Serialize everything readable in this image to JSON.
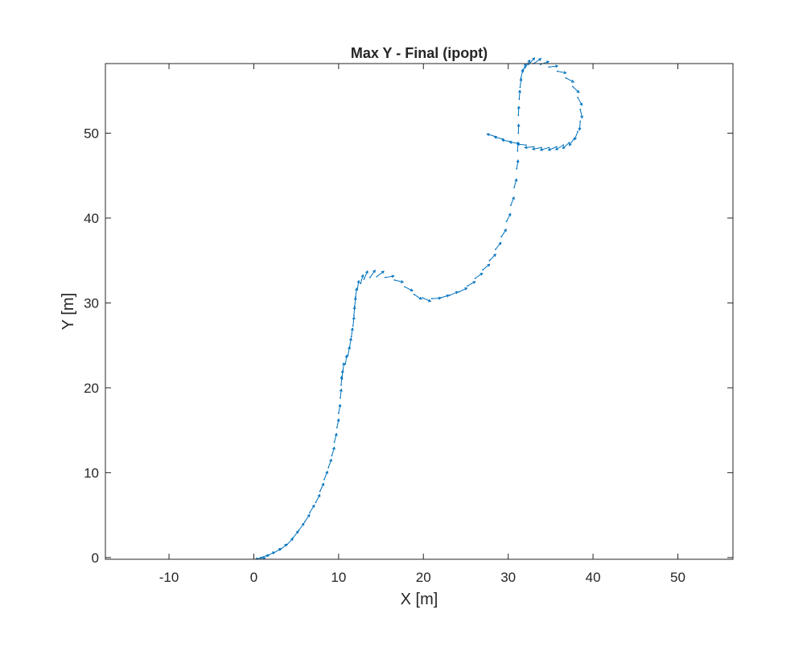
{
  "chart_data": {
    "type": "scatter",
    "title": "Max Y - Final (ipopt)",
    "xlabel": "X [m]",
    "ylabel": "Y [m]",
    "xlim": [
      -17.5,
      56.5
    ],
    "ylim": [
      -0.2,
      58.2
    ],
    "xticks": [
      -10,
      0,
      10,
      20,
      30,
      40,
      50
    ],
    "yticks": [
      0,
      10,
      20,
      30,
      40,
      50
    ],
    "xtick_labels": [
      "-10",
      "0",
      "10",
      "20",
      "30",
      "40",
      "50"
    ],
    "ytick_labels": [
      "0",
      "10",
      "20",
      "30",
      "40",
      "50"
    ],
    "grid": false,
    "series": [
      {
        "color": "#0072BD",
        "style": "quiver",
        "x": [
          0.3,
          0.8,
          1.5,
          2.3,
          3.1,
          3.9,
          4.6,
          5.3,
          6.0,
          6.6,
          7.3,
          7.8,
          8.3,
          8.8,
          9.2,
          9.5,
          9.8,
          10.0,
          10.2,
          10.3,
          10.4,
          10.5,
          10.8,
          11.1,
          11.3,
          11.5,
          11.7,
          11.8,
          11.9,
          12.0,
          12.2,
          12.6,
          13.0,
          13.7,
          14.5,
          15.5,
          16.6,
          17.8,
          18.9,
          19.9,
          21.0,
          22.0,
          23.1,
          24.2,
          25.2,
          26.1,
          27.0,
          27.8,
          28.5,
          29.2,
          29.8,
          30.3,
          30.7,
          31.0,
          31.1,
          31.2,
          31.2,
          31.3,
          31.4,
          31.5,
          31.7,
          32.0,
          32.4,
          33.0,
          33.8,
          34.8,
          35.8,
          36.8,
          37.6,
          38.2,
          38.5,
          38.5,
          38.2,
          37.8,
          37.2,
          36.5,
          35.7,
          34.8,
          33.9,
          33.0,
          32.1,
          31.2,
          30.3,
          29.4,
          28.5
        ],
        "y": [
          -0.1,
          0.0,
          0.2,
          0.5,
          0.9,
          1.5,
          2.3,
          3.2,
          4.2,
          5.3,
          6.5,
          7.8,
          9.2,
          10.6,
          12.0,
          13.6,
          15.3,
          17.0,
          18.8,
          20.3,
          21.0,
          21.9,
          22.8,
          23.8,
          24.8,
          26.0,
          27.3,
          28.5,
          29.6,
          30.7,
          31.6,
          32.3,
          32.8,
          33.0,
          33.1,
          33.0,
          32.7,
          31.9,
          31.0,
          30.6,
          30.5,
          30.6,
          30.9,
          31.3,
          32.0,
          32.9,
          33.9,
          35.0,
          36.3,
          37.8,
          39.6,
          41.5,
          43.6,
          45.8,
          47.9,
          50.0,
          52.1,
          54.0,
          55.4,
          56.5,
          57.2,
          57.7,
          58.1,
          58.2,
          58.1,
          57.8,
          57.3,
          56.5,
          55.5,
          54.2,
          52.8,
          51.4,
          50.2,
          49.4,
          48.9,
          48.6,
          48.4,
          48.3,
          48.3,
          48.4,
          48.6,
          48.8,
          49.0,
          49.3,
          49.6
        ],
        "u": [
          0.54,
          0.61,
          0.71,
          0.76,
          0.74,
          0.69,
          0.63,
          0.59,
          0.56,
          0.52,
          0.47,
          0.42,
          0.38,
          0.33,
          0.29,
          0.25,
          0.21,
          0.18,
          0.11,
          0.06,
          0.08,
          0.12,
          0.16,
          0.18,
          0.16,
          0.14,
          0.11,
          0.09,
          0.1,
          0.13,
          0.18,
          0.27,
          0.4,
          0.58,
          0.72,
          0.83,
          0.88,
          0.89,
          0.84,
          0.79,
          0.8,
          0.85,
          0.9,
          0.93,
          0.91,
          0.85,
          0.78,
          0.7,
          0.62,
          0.54,
          0.46,
          0.37,
          0.27,
          0.16,
          0.06,
          0.03,
          0.05,
          0.07,
          0.12,
          0.22,
          0.36,
          0.52,
          0.68,
          0.83,
          0.94,
          0.99,
          0.98,
          0.89,
          0.72,
          0.48,
          0.21,
          -0.09,
          -0.36,
          -0.58,
          -0.74,
          -0.85,
          -0.92,
          -0.96,
          -0.98,
          -0.99,
          -0.99,
          -0.99,
          -0.98,
          -0.97,
          -0.96
        ],
        "v": [
          0.02,
          0.18,
          0.33,
          0.49,
          0.63,
          0.73,
          0.79,
          0.81,
          0.83,
          0.85,
          0.88,
          0.9,
          0.92,
          0.94,
          0.96,
          0.97,
          0.98,
          0.98,
          0.99,
          1.0,
          0.99,
          0.99,
          0.99,
          0.98,
          0.99,
          0.99,
          0.99,
          1.0,
          1.0,
          0.99,
          0.98,
          0.96,
          0.92,
          0.81,
          0.55,
          0.14,
          -0.22,
          -0.45,
          -0.54,
          -0.35,
          0.05,
          0.25,
          0.38,
          0.45,
          0.52,
          0.59,
          0.63,
          0.71,
          0.79,
          0.84,
          0.89,
          0.93,
          0.96,
          0.99,
          1.0,
          1.0,
          1.0,
          1.0,
          0.99,
          0.98,
          0.93,
          0.85,
          0.73,
          0.56,
          0.33,
          0.11,
          -0.2,
          -0.46,
          -0.69,
          -0.88,
          -0.98,
          -1.0,
          -0.93,
          -0.81,
          -0.67,
          -0.52,
          -0.39,
          -0.28,
          -0.18,
          -0.1,
          0.11,
          0.14,
          0.19,
          0.24,
          0.29
        ]
      }
    ]
  }
}
